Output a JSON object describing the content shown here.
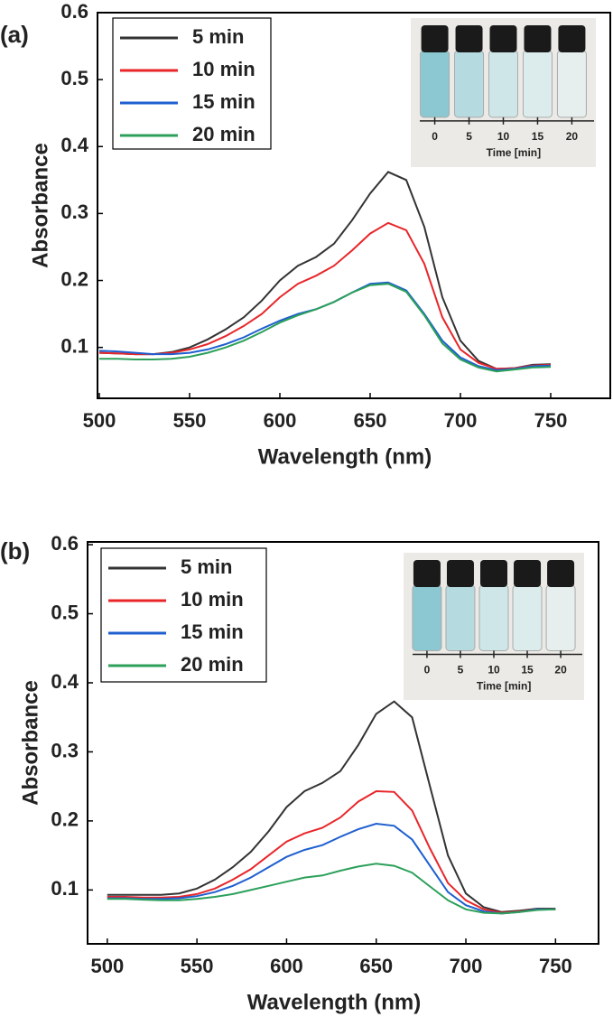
{
  "chart_data": [
    {
      "type": "line",
      "panel_label": "(a)",
      "x_label": "Wavelength (nm)",
      "y_label": "Absorbance",
      "x": [
        500,
        510,
        520,
        530,
        540,
        550,
        560,
        570,
        580,
        590,
        600,
        610,
        620,
        630,
        640,
        650,
        660,
        670,
        680,
        690,
        700,
        710,
        720,
        730,
        740,
        750
      ],
      "series": [
        {
          "name": "5 min",
          "color": "#333333",
          "values": [
            0.092,
            0.091,
            0.09,
            0.09,
            0.093,
            0.1,
            0.112,
            0.127,
            0.145,
            0.17,
            0.2,
            0.222,
            0.235,
            0.255,
            0.29,
            0.33,
            0.362,
            0.35,
            0.28,
            0.175,
            0.11,
            0.08,
            0.068,
            0.069,
            0.074,
            0.075
          ]
        },
        {
          "name": "10 min",
          "color": "#e8262a",
          "values": [
            0.092,
            0.091,
            0.09,
            0.09,
            0.092,
            0.097,
            0.105,
            0.117,
            0.132,
            0.15,
            0.175,
            0.195,
            0.207,
            0.222,
            0.245,
            0.27,
            0.286,
            0.275,
            0.225,
            0.145,
            0.097,
            0.077,
            0.068,
            0.069,
            0.073,
            0.074
          ]
        },
        {
          "name": "15 min",
          "color": "#1f5fd0",
          "values": [
            0.095,
            0.094,
            0.092,
            0.09,
            0.09,
            0.092,
            0.097,
            0.105,
            0.115,
            0.128,
            0.14,
            0.15,
            0.157,
            0.168,
            0.182,
            0.195,
            0.197,
            0.185,
            0.15,
            0.11,
            0.085,
            0.072,
            0.066,
            0.068,
            0.072,
            0.073
          ]
        },
        {
          "name": "20 min",
          "color": "#2ca05a",
          "values": [
            0.083,
            0.083,
            0.082,
            0.082,
            0.083,
            0.086,
            0.092,
            0.1,
            0.11,
            0.123,
            0.137,
            0.148,
            0.157,
            0.168,
            0.182,
            0.193,
            0.195,
            0.183,
            0.148,
            0.106,
            0.082,
            0.07,
            0.064,
            0.067,
            0.07,
            0.071
          ]
        }
      ],
      "xlim": [
        499,
        783
      ],
      "xticks": [
        500,
        550,
        600,
        650,
        700,
        750
      ],
      "ylim": [
        0.024,
        0.6
      ],
      "yticks": [
        0.1,
        0.2,
        0.3,
        0.4,
        0.5,
        0.6
      ],
      "legend": "upper left",
      "inset": {
        "ticks": [
          "0",
          "5",
          "10",
          "15",
          "20"
        ],
        "label": "Time [min]"
      }
    },
    {
      "type": "line",
      "panel_label": "(b)",
      "x_label": "Wavelength (nm)",
      "y_label": "Absorbance",
      "x": [
        500,
        510,
        520,
        530,
        540,
        550,
        560,
        570,
        580,
        590,
        600,
        610,
        620,
        630,
        640,
        650,
        660,
        670,
        680,
        690,
        700,
        710,
        720,
        730,
        740,
        750
      ],
      "series": [
        {
          "name": "5 min",
          "color": "#333333",
          "values": [
            0.093,
            0.093,
            0.093,
            0.093,
            0.095,
            0.102,
            0.115,
            0.133,
            0.155,
            0.185,
            0.22,
            0.243,
            0.255,
            0.272,
            0.31,
            0.355,
            0.373,
            0.35,
            0.25,
            0.15,
            0.095,
            0.075,
            0.068,
            0.07,
            0.073,
            0.073
          ]
        },
        {
          "name": "10 min",
          "color": "#e8262a",
          "values": [
            0.09,
            0.09,
            0.089,
            0.089,
            0.09,
            0.094,
            0.102,
            0.115,
            0.13,
            0.15,
            0.17,
            0.182,
            0.19,
            0.205,
            0.228,
            0.243,
            0.242,
            0.215,
            0.16,
            0.11,
            0.085,
            0.072,
            0.067,
            0.069,
            0.072,
            0.072
          ]
        },
        {
          "name": "15 min",
          "color": "#1f5fd0",
          "values": [
            0.088,
            0.088,
            0.087,
            0.087,
            0.088,
            0.091,
            0.097,
            0.106,
            0.118,
            0.133,
            0.148,
            0.158,
            0.165,
            0.177,
            0.188,
            0.196,
            0.193,
            0.173,
            0.135,
            0.097,
            0.078,
            0.069,
            0.066,
            0.068,
            0.072,
            0.072
          ]
        },
        {
          "name": "20 min",
          "color": "#2ca05a",
          "values": [
            0.087,
            0.087,
            0.086,
            0.085,
            0.085,
            0.087,
            0.09,
            0.094,
            0.1,
            0.106,
            0.112,
            0.118,
            0.121,
            0.128,
            0.134,
            0.138,
            0.135,
            0.125,
            0.105,
            0.085,
            0.072,
            0.067,
            0.066,
            0.068,
            0.071,
            0.072
          ]
        }
      ],
      "xlim": [
        489,
        774
      ],
      "xticks": [
        500,
        550,
        600,
        650,
        700,
        750
      ],
      "ylim": [
        0.022,
        0.604
      ],
      "yticks": [
        0.1,
        0.2,
        0.3,
        0.4,
        0.5,
        0.6
      ],
      "legend": "upper left",
      "inset": {
        "ticks": [
          "0",
          "5",
          "10",
          "15",
          "20"
        ],
        "label": "Time [min]"
      }
    }
  ]
}
